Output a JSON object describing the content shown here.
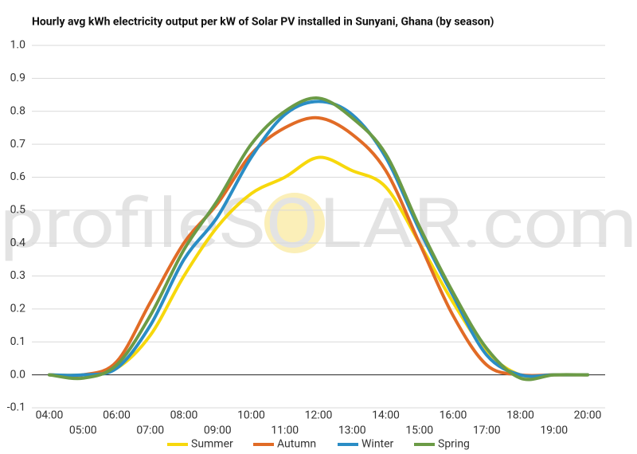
{
  "chart_data": {
    "type": "line",
    "title": "Hourly avg kWh electricity output per kW of Solar PV installed in Sunyani, Ghana (by season)",
    "watermark": "profileSOLAR.com",
    "categories": [
      "04:00",
      "05:00",
      "06:00",
      "07:00",
      "08:00",
      "09:00",
      "10:00",
      "11:00",
      "12:00",
      "13:00",
      "14:00",
      "15:00",
      "16:00",
      "17:00",
      "18:00",
      "19:00",
      "20:00"
    ],
    "series": [
      {
        "name": "Summer",
        "color": "#f7d80c",
        "values": [
          0,
          0,
          0.02,
          0.12,
          0.3,
          0.45,
          0.55,
          0.6,
          0.66,
          0.62,
          0.57,
          0.4,
          0.22,
          0.07,
          0.0,
          0,
          0
        ]
      },
      {
        "name": "Autumn",
        "color": "#e16b26",
        "values": [
          0,
          0,
          0.04,
          0.22,
          0.4,
          0.52,
          0.67,
          0.75,
          0.78,
          0.73,
          0.62,
          0.4,
          0.18,
          0.03,
          0,
          0,
          0
        ]
      },
      {
        "name": "Winter",
        "color": "#2a8dc5",
        "values": [
          0,
          0,
          0.02,
          0.15,
          0.35,
          0.48,
          0.66,
          0.79,
          0.83,
          0.79,
          0.66,
          0.44,
          0.24,
          0.06,
          0,
          0,
          0
        ]
      },
      {
        "name": "Spring",
        "color": "#6b9b46",
        "values": [
          0,
          -0.01,
          0.03,
          0.18,
          0.38,
          0.53,
          0.7,
          0.8,
          0.84,
          0.78,
          0.67,
          0.45,
          0.25,
          0.08,
          -0.01,
          0,
          0
        ]
      }
    ],
    "ylim": [
      -0.1,
      1.0
    ],
    "yticks": [
      {
        "value": 1,
        "label": "1.0"
      },
      0.9,
      0.8,
      0.7,
      0.6,
      0.5,
      0.4,
      0.3,
      0.2,
      0.1,
      {
        "value": 0,
        "label": "0.0"
      },
      -0.1
    ],
    "grid": true
  }
}
